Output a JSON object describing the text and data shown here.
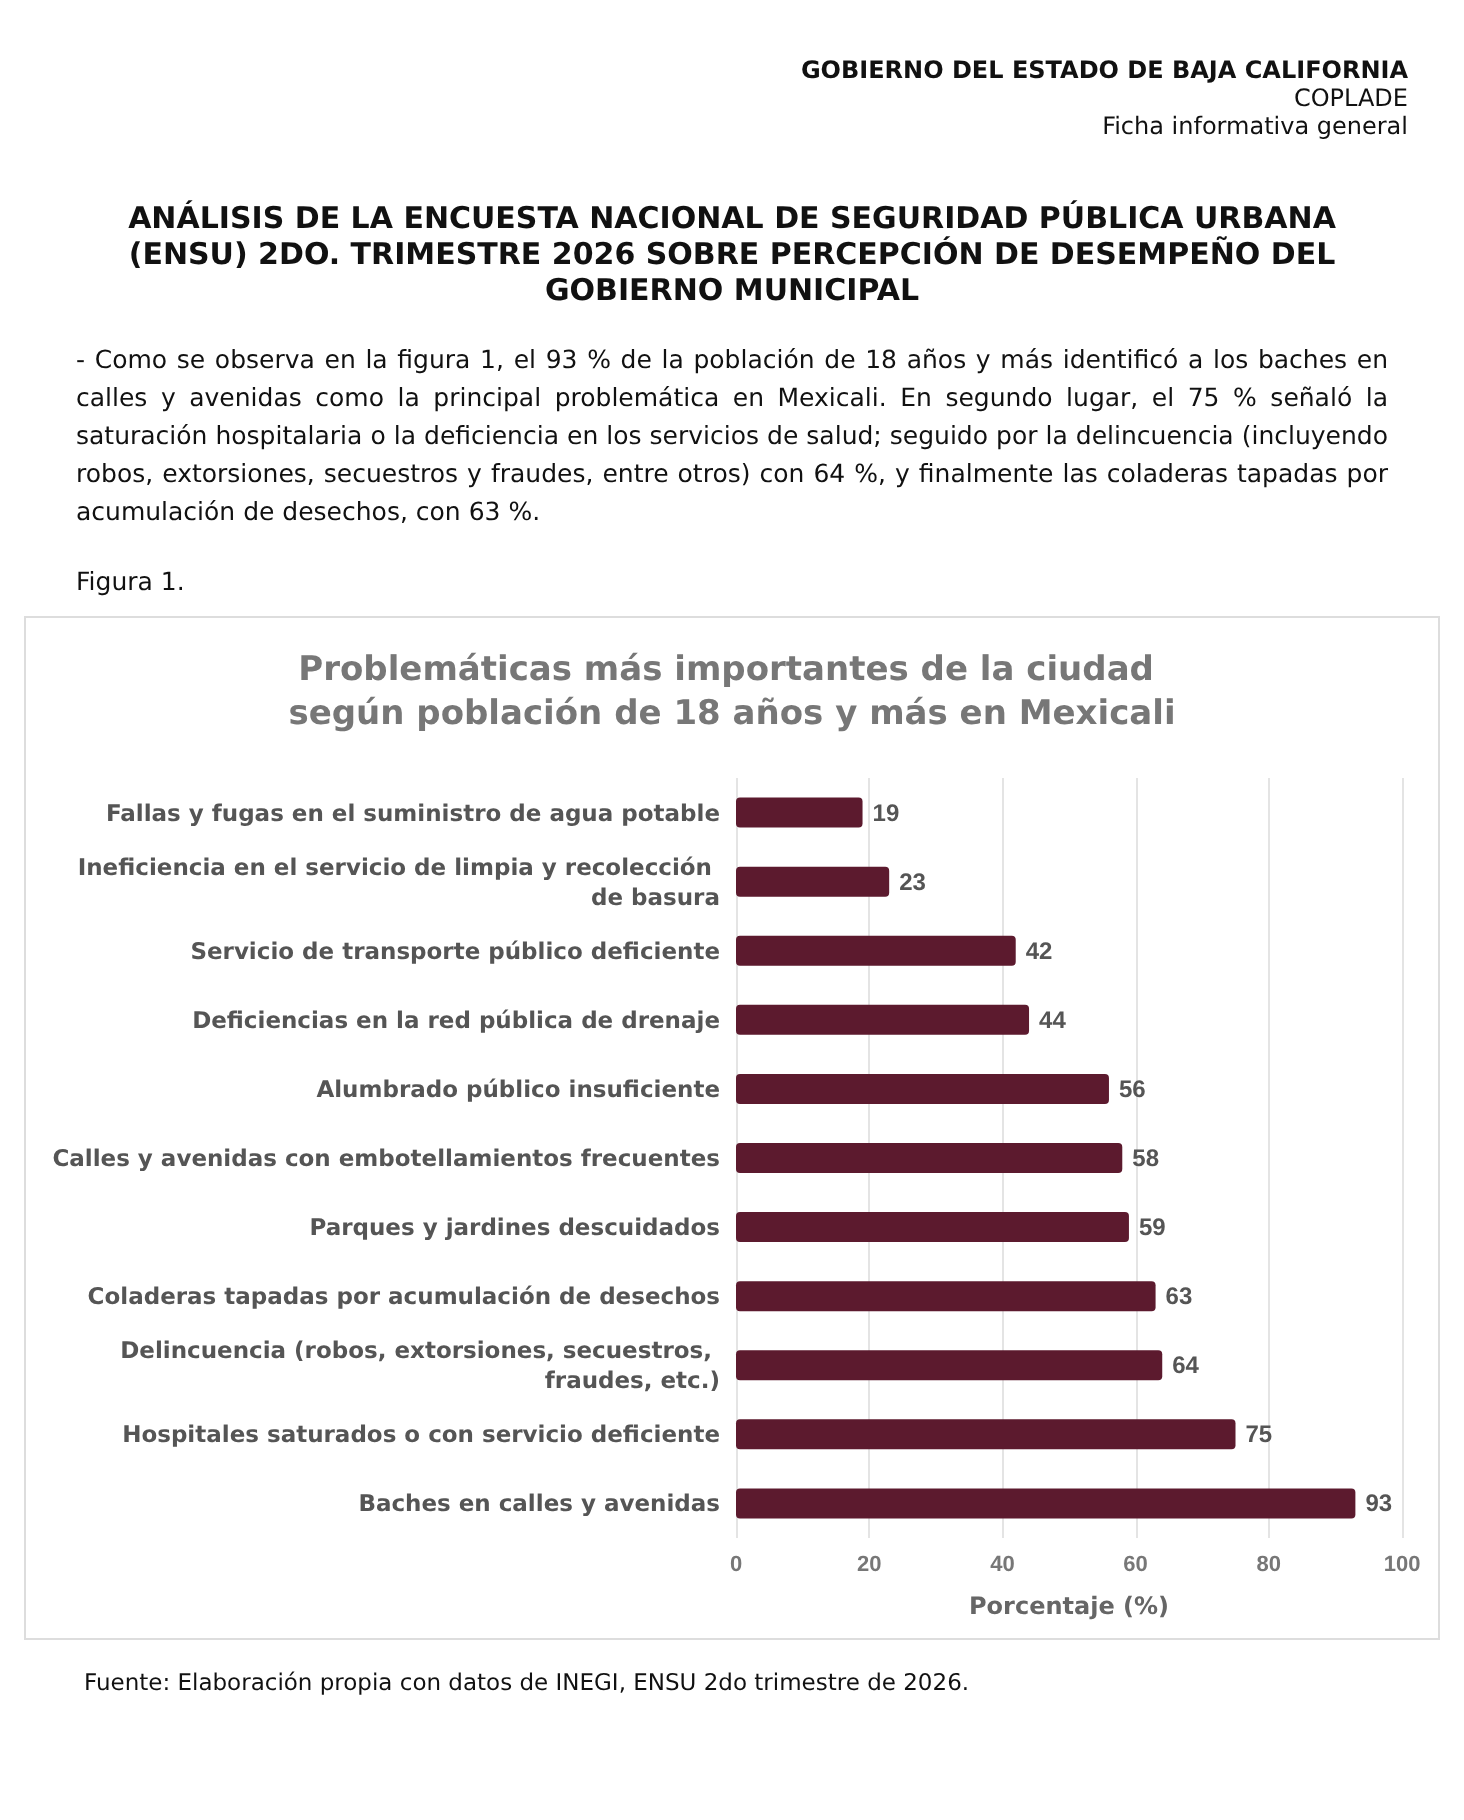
{
  "chart_data": {
    "type": "bar",
    "orientation": "horizontal",
    "title": "Problemáticas más importantes de la ciudad según población de 18 años y más en Mexicali",
    "categories": [
      "Fallas y fugas en el suministro de agua potable",
      "Ineficiencia en el servicio de limpia y recolección de basura",
      "Servicio de transporte público deficiente",
      "Deficiencias en la red pública de drenaje",
      "Alumbrado público insuficiente",
      "Calles y avenidas con embotellamientos frecuentes",
      "Parques y jardines descuidados",
      "Coladeras tapadas por acumulación de desechos",
      "Delincuencia (robos, extorsiones, secuestros, fraudes, etc.)",
      "Hospitales saturados o con servicio deficiente",
      "Baches en calles y avenidas"
    ],
    "values": [
      19,
      23,
      42,
      44,
      56,
      58,
      59,
      63,
      64,
      75,
      93
    ],
    "color": "#5c1a2e",
    "xlim": [
      0,
      100
    ],
    "xticks": [
      0,
      20,
      40,
      60,
      80,
      100
    ],
    "grid": "x",
    "data_labels": true,
    "xlabel": "Porcentaje (%)",
    "annotations": [
      "GOBIERNO DEL ESTADO DE BAJA CALIFORNIA",
      "COPLADE",
      "Ficha informativa general",
      "ANÁLISIS DE LA ENCUESTA NACIONAL DE SEGURIDAD PÚBLICA URBANA (ENSU) 2DO. TRIMESTRE 2026 SOBRE PERCEPCIÓN DE DESEMPEÑO DEL GOBIERNO MUNICIPAL",
      "- Como se observa en la figura 1, el 93 % de la población de 18 años y más identificó a los baches en calles y avenidas como la principal problemática en Mexicali. En segundo lugar, el 75 % señaló la saturación hospitalaria o la deficiencia en los servicios de salud; seguido por la delincuencia (incluyendo robos, extorsiones, secuestros y fraudes, entre otros) con 64 %, y finalmente las coladeras tapadas por acumulación de desechos, con 63 %.",
      "Figura 1.",
      "Fuente: Elaboración propia con datos de INEGI, ENSU 2do trimestre de 2026."
    ]
  }
}
